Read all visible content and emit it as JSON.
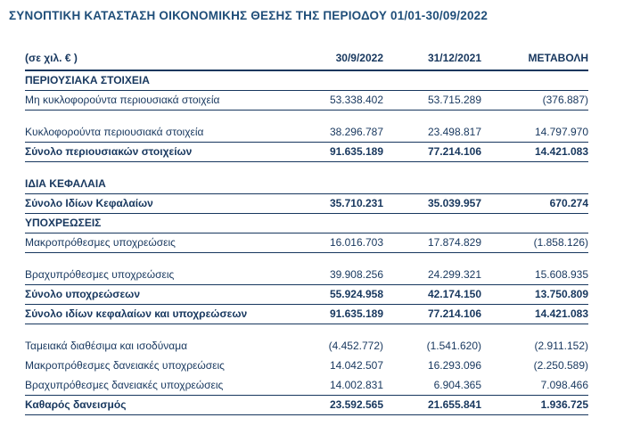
{
  "title": "ΣΥΝΟΠΤΙΚΗ ΚΑΤΑΣΤΑΣΗ ΟΙΚΟΝΟΜΙΚΗΣ ΘΕΣΗΣ ΤΗΣ ΠΕΡΙΟΔΟΥ 01/01-30/09/2022",
  "colors": {
    "title_text": "#1F4E79",
    "body_text": "#17375E",
    "rule_line": "#17375E",
    "background": "#FFFFFF"
  },
  "header": {
    "unit_label": "(σε χιλ. € )",
    "columns": [
      "30/9/2022",
      "31/12/2021",
      "ΜΕΤΑΒΟΛΗ"
    ]
  },
  "rows": [
    {
      "type": "section",
      "label": "ΠΕΡΙΟΥΣΙΑΚΑ ΣΤΟΙΧΕΙΑ"
    },
    {
      "type": "data",
      "label": "Μη κυκλοφορούντα περιουσιακά στοιχεία",
      "v1": "53.338.402",
      "v2": "53.715.289",
      "v3": "(376.887)"
    },
    {
      "type": "data",
      "label": "Κυκλοφορούντα περιουσιακά στοιχεία",
      "v1": "38.296.787",
      "v2": "23.498.817",
      "v3": "14.797.970"
    },
    {
      "type": "total",
      "label": "Σύνολο περιουσιακών στοιχείων",
      "v1": "91.635.189",
      "v2": "77.214.106",
      "v3": "14.421.083"
    },
    {
      "type": "section",
      "label": "ΙΔΙΑ ΚΕΦΑΛΑΙΑ"
    },
    {
      "type": "total",
      "label": "Σύνολο Ιδίων Κεφαλαίων",
      "v1": "35.710.231",
      "v2": "35.039.957",
      "v3": "670.274"
    },
    {
      "type": "section",
      "label": "ΥΠΟΧΡΕΩΣΕΙΣ"
    },
    {
      "type": "data",
      "label": "Μακροπρόθεσμες υποχρεώσεις",
      "v1": "16.016.703",
      "v2": "17.874.829",
      "v3": "(1.858.126)"
    },
    {
      "type": "data",
      "label": "Βραχυπρόθεσμες υποχρεώσεις",
      "v1": "39.908.256",
      "v2": "24.299.321",
      "v3": "15.608.935"
    },
    {
      "type": "total",
      "label": "Σύνολο υποχρεώσεων",
      "v1": "55.924.958",
      "v2": "42.174.150",
      "v3": "13.750.809"
    },
    {
      "type": "total",
      "label": "Σύνολο ιδίων κεφαλαίων και υποχρεώσεων",
      "v1": "91.635.189",
      "v2": "77.214.106",
      "v3": "14.421.083"
    },
    {
      "type": "data",
      "label": "Ταμειακά διαθέσιμα και ισοδύναμα",
      "v1": "(4.452.772)",
      "v2": "(1.541.620)",
      "v3": "(2.911.152)"
    },
    {
      "type": "data",
      "label": "Μακροπρόθεσμες δανειακές υποχρεώσεις",
      "v1": "14.042.507",
      "v2": "16.293.096",
      "v3": "(2.250.589)"
    },
    {
      "type": "data",
      "label": "Βραχυπρόθεσμες δανειακές υποχρεώσεις",
      "v1": "14.002.831",
      "v2": "6.904.365",
      "v3": "7.098.466"
    },
    {
      "type": "total",
      "label": "Καθαρός δανεισμός",
      "v1": "23.592.565",
      "v2": "21.655.841",
      "v3": "1.936.725"
    }
  ]
}
